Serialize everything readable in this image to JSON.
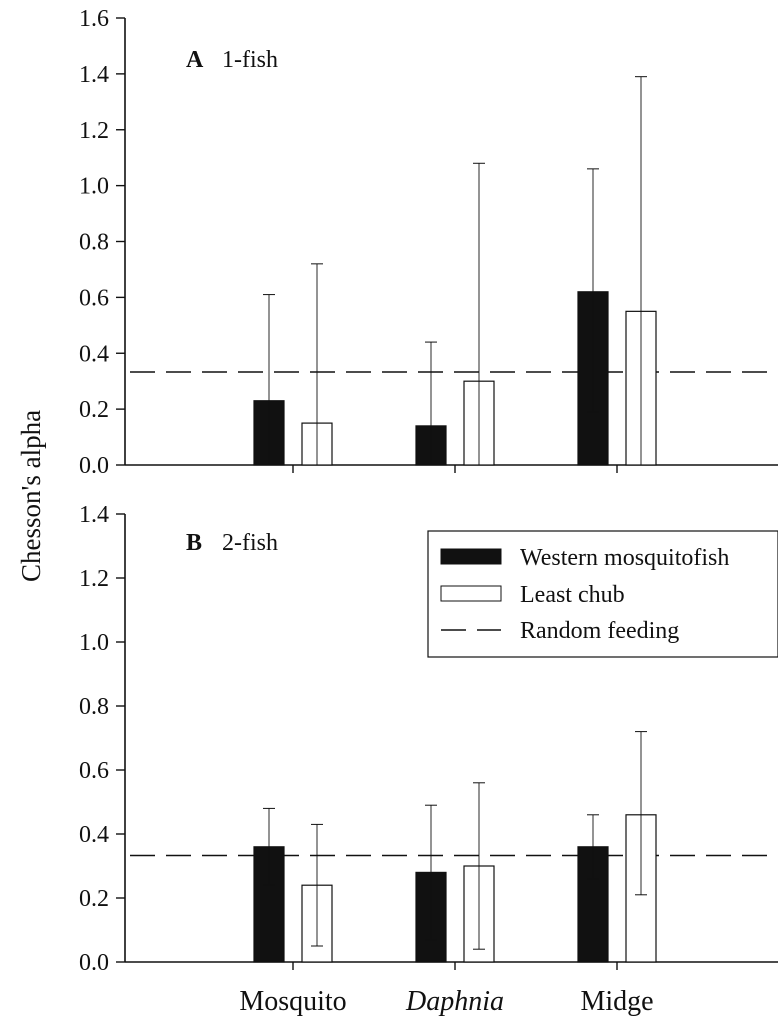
{
  "chart_data": [
    {
      "type": "bar",
      "panel_letter": "A",
      "title": "1-fish",
      "ylabel": "Chesson's alpha",
      "ylim": [
        0,
        1.6
      ],
      "yticks": [
        "0.0",
        "0.2",
        "0.4",
        "0.6",
        "0.8",
        "1.0",
        "1.2",
        "1.4",
        "1.6"
      ],
      "categories": [
        "Mosquito",
        "Daphnia",
        "Midge"
      ],
      "series": [
        {
          "name": "Western mosquitofish",
          "values": [
            0.23,
            0.14,
            0.62
          ],
          "error_low": [
            0.0,
            0.0,
            0.19
          ],
          "error_high": [
            0.61,
            0.44,
            1.06
          ]
        },
        {
          "name": "Least chub",
          "values": [
            0.15,
            0.3,
            0.55
          ],
          "error_low": [
            0.0,
            0.0,
            0.0
          ],
          "error_high": [
            0.72,
            1.08,
            1.39
          ]
        }
      ],
      "reference_line": {
        "name": "Random feeding",
        "value": 0.333
      }
    },
    {
      "type": "bar",
      "panel_letter": "B",
      "title": "2-fish",
      "ylabel": "Chesson's alpha",
      "ylim": [
        0,
        1.4
      ],
      "yticks": [
        "0.0",
        "0.2",
        "0.4",
        "0.6",
        "0.8",
        "1.0",
        "1.2",
        "1.4"
      ],
      "categories": [
        "Mosquito",
        "Daphnia",
        "Midge"
      ],
      "series": [
        {
          "name": "Western mosquitofish",
          "values": [
            0.36,
            0.28,
            0.36
          ],
          "error_low": [
            0.24,
            0.07,
            0.26
          ],
          "error_high": [
            0.48,
            0.49,
            0.46
          ]
        },
        {
          "name": "Least chub",
          "values": [
            0.24,
            0.3,
            0.46
          ],
          "error_low": [
            0.05,
            0.04,
            0.21
          ],
          "error_high": [
            0.43,
            0.56,
            0.72
          ]
        }
      ],
      "reference_line": {
        "name": "Random feeding",
        "value": 0.333
      }
    }
  ],
  "axis": {
    "ylabel": "Chesson's alpha",
    "xlabels": [
      "Mosquito",
      "Daphnia",
      "Midge"
    ]
  },
  "legend": {
    "placement": "top-right of panel B",
    "items": [
      "Western mosquitofish",
      "Least chub",
      "Random feeding"
    ]
  },
  "colors": {
    "western_mosquitofish": "#111111",
    "least_chub": "#ffffff",
    "axis": "#111111"
  }
}
